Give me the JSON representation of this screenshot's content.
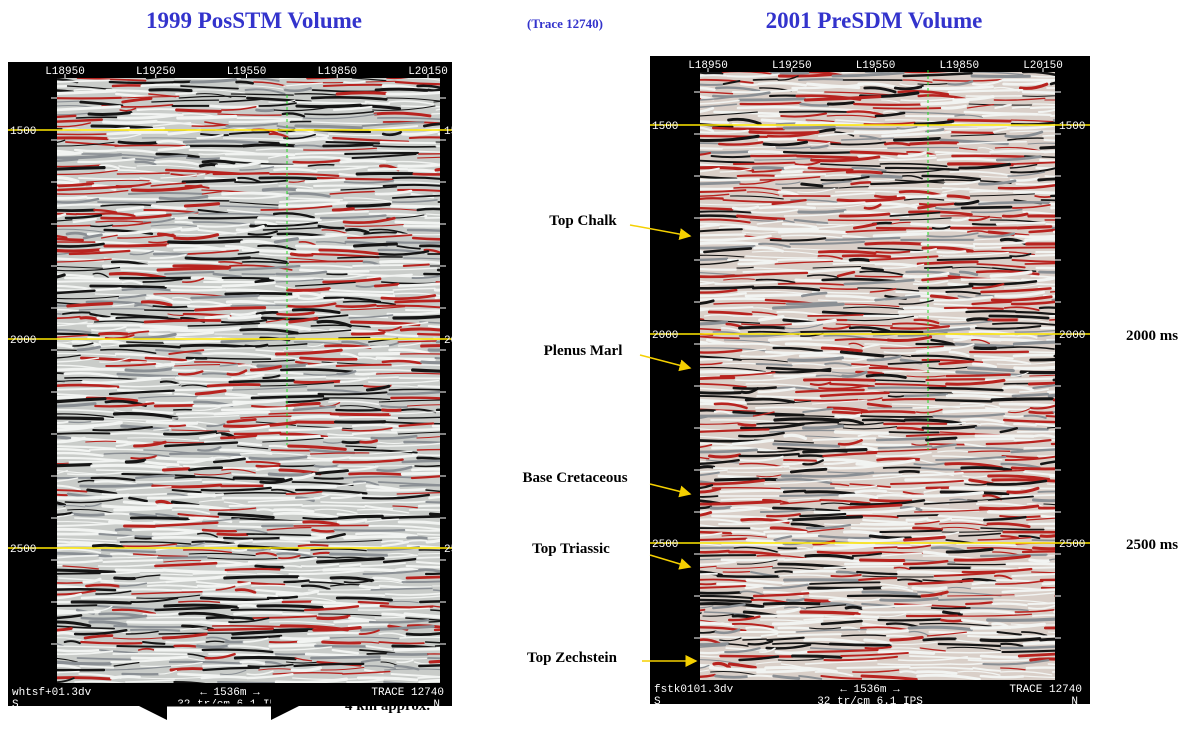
{
  "titles": {
    "left": "1999 PosSTM Volume",
    "center": "(Trace 12740)",
    "right": "2001 PreSDM Volume"
  },
  "panels": [
    {
      "line_labels": [
        "L18950",
        "L19250",
        "L19550",
        "L19850",
        "L20150"
      ],
      "time_labels": [
        1500,
        2000,
        2500
      ],
      "file_label": "whtsf+01.3dv",
      "scale_label": "← 1536m →",
      "trace_label": "TRACE 12740",
      "south": "S",
      "scale_info": "32 tr/cm 6.1 IPS",
      "north": "N"
    },
    {
      "line_labels": [
        "L18950",
        "L19250",
        "L19550",
        "L19850",
        "L20150"
      ],
      "time_labels": [
        1500,
        2000,
        2500
      ],
      "file_label": "fstk0101.3dv",
      "scale_label": "← 1536m →",
      "trace_label": "TRACE 12740",
      "south": "S",
      "scale_info": "32 tr/cm 6.1 IPS",
      "north": "N"
    }
  ],
  "horizons": [
    "Top Chalk",
    "Plenus Marl",
    "Base Cretaceous",
    "Top Triassic",
    "Top Zechstein"
  ],
  "time_markers": [
    "2000 ms",
    "2500 ms"
  ],
  "scale_note": "4 km approx."
}
